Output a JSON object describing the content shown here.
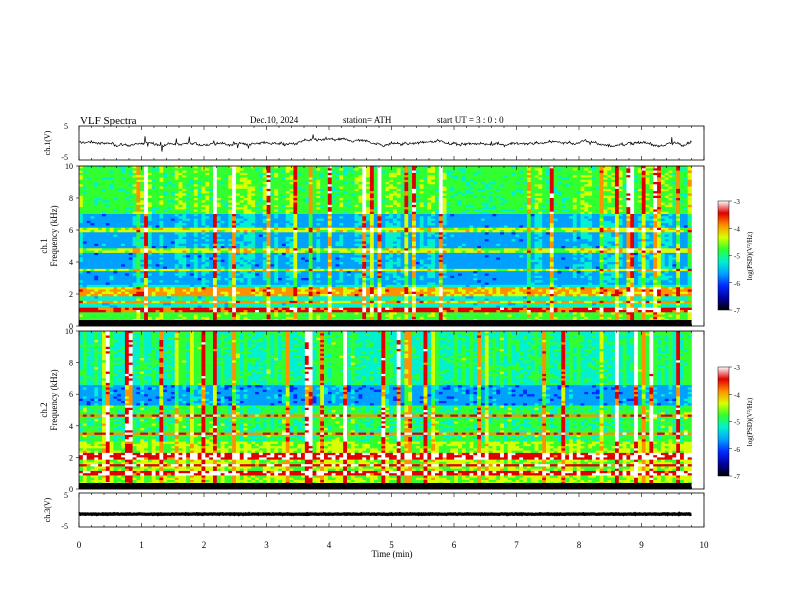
{
  "header": {
    "title": "VLF  Spectra",
    "date": "Dec.10, 2024",
    "station": "station= ATH",
    "start_ut": "start  UT  =    3  : 0   : 0"
  },
  "colors": {
    "colormap": [
      "#000000",
      "#0000a0",
      "#0028ff",
      "#00a0ff",
      "#00f0d0",
      "#30ff30",
      "#d8ff00",
      "#ff9000",
      "#e00000",
      "#ffffff"
    ],
    "line": "#000000",
    "bands": "#c040a0"
  },
  "chart_data": [
    {
      "type": "line",
      "id": "ch1-time-series",
      "ylabel": "ch.1(V)",
      "yticks": [
        "5",
        "-5"
      ],
      "ylim": [
        -5,
        5
      ],
      "xlim": [
        0,
        10
      ],
      "signal": {
        "mean": 0,
        "amplitude": 1.0,
        "span_min": [
          0,
          9.8
        ]
      }
    },
    {
      "type": "heatmap",
      "id": "ch1-spectrogram",
      "ylabel_channel": "ch.1",
      "ylabel": "Frequency  (kHz)",
      "yticks": [
        "0",
        "2",
        "4",
        "6",
        "8",
        "10"
      ],
      "ylim": [
        0,
        10
      ],
      "xlim": [
        0,
        10
      ],
      "data_span_min": [
        0,
        9.8
      ],
      "colorbar": {
        "label": "log(PSD)(V²/Hz)",
        "ticks": [
          "-3",
          "-4",
          "-5",
          "-6",
          "-7"
        ],
        "range": [
          -7,
          -3
        ]
      },
      "tone_lines_khz": [
        1.0,
        1.5,
        2.0,
        2.3,
        3.5,
        4.7,
        6.0
      ],
      "approx_background_log_psd": -5.8
    },
    {
      "type": "heatmap",
      "id": "ch2-spectrogram",
      "ylabel_channel": "ch.2",
      "ylabel": "Frequency  (kHz)",
      "yticks": [
        "0",
        "2",
        "4",
        "6",
        "8",
        "10"
      ],
      "ylim": [
        0,
        10
      ],
      "xlim": [
        0,
        10
      ],
      "data_span_min": [
        0,
        9.8
      ],
      "colorbar": {
        "label": "log(PSD)(V²/Hz)",
        "ticks": [
          "-3",
          "-4",
          "-5",
          "-6",
          "-7"
        ],
        "range": [
          -7,
          -3
        ]
      },
      "tone_lines_khz": [
        1.0,
        1.5,
        2.0,
        2.2,
        3.5,
        4.6
      ],
      "approx_background_log_psd": -5.2
    },
    {
      "type": "line",
      "id": "ch3-time-series",
      "ylabel": "ch.3(V)",
      "yticks": [
        "5",
        "-5"
      ],
      "ylim": [
        -5,
        5
      ],
      "xlim": [
        0,
        10
      ],
      "signal": {
        "mean": -1.2,
        "amplitude": 0.15,
        "span_min": [
          0,
          9.8
        ]
      },
      "xlabel": "Time  (min)",
      "xticks": [
        "0",
        "1",
        "2",
        "3",
        "4",
        "5",
        "6",
        "7",
        "8",
        "9",
        "10"
      ]
    }
  ]
}
